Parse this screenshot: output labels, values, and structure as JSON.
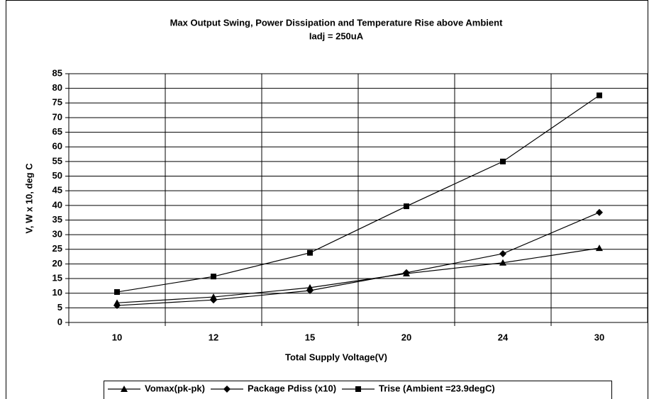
{
  "chart_data": {
    "type": "line",
    "title": "Max Output Swing, Power Dissipation and Temperature Rise above Ambient",
    "subtitle": "Iadj = 250uA",
    "x_label": "Total Supply Voltage(V)",
    "y_label": "V, W x 10, deg C",
    "categories": [
      "10",
      "12",
      "15",
      "20",
      "24",
      "30"
    ],
    "series": [
      {
        "name": "Vomax(pk-pk)",
        "color": "#000000",
        "marker": "triangle",
        "values": [
          6.7,
          8.7,
          11.9,
          16.7,
          20.4,
          25.4
        ]
      },
      {
        "name": "Package Pdiss (x10)",
        "color": "#000000",
        "marker": "diamond",
        "values": [
          5.8,
          7.7,
          10.9,
          17.0,
          23.5,
          37.6
        ]
      },
      {
        "name": "Trise (Ambient =23.9degC)",
        "color": "#000000",
        "marker": "square",
        "values": [
          10.4,
          15.7,
          23.8,
          39.7,
          55.0,
          77.6
        ]
      }
    ],
    "ylim": [
      0,
      85
    ],
    "yticks": [
      0,
      5,
      10,
      15,
      20,
      25,
      30,
      35,
      40,
      45,
      50,
      55,
      60,
      65,
      70,
      75,
      80,
      85
    ],
    "grid": true,
    "legend": "bottom"
  }
}
